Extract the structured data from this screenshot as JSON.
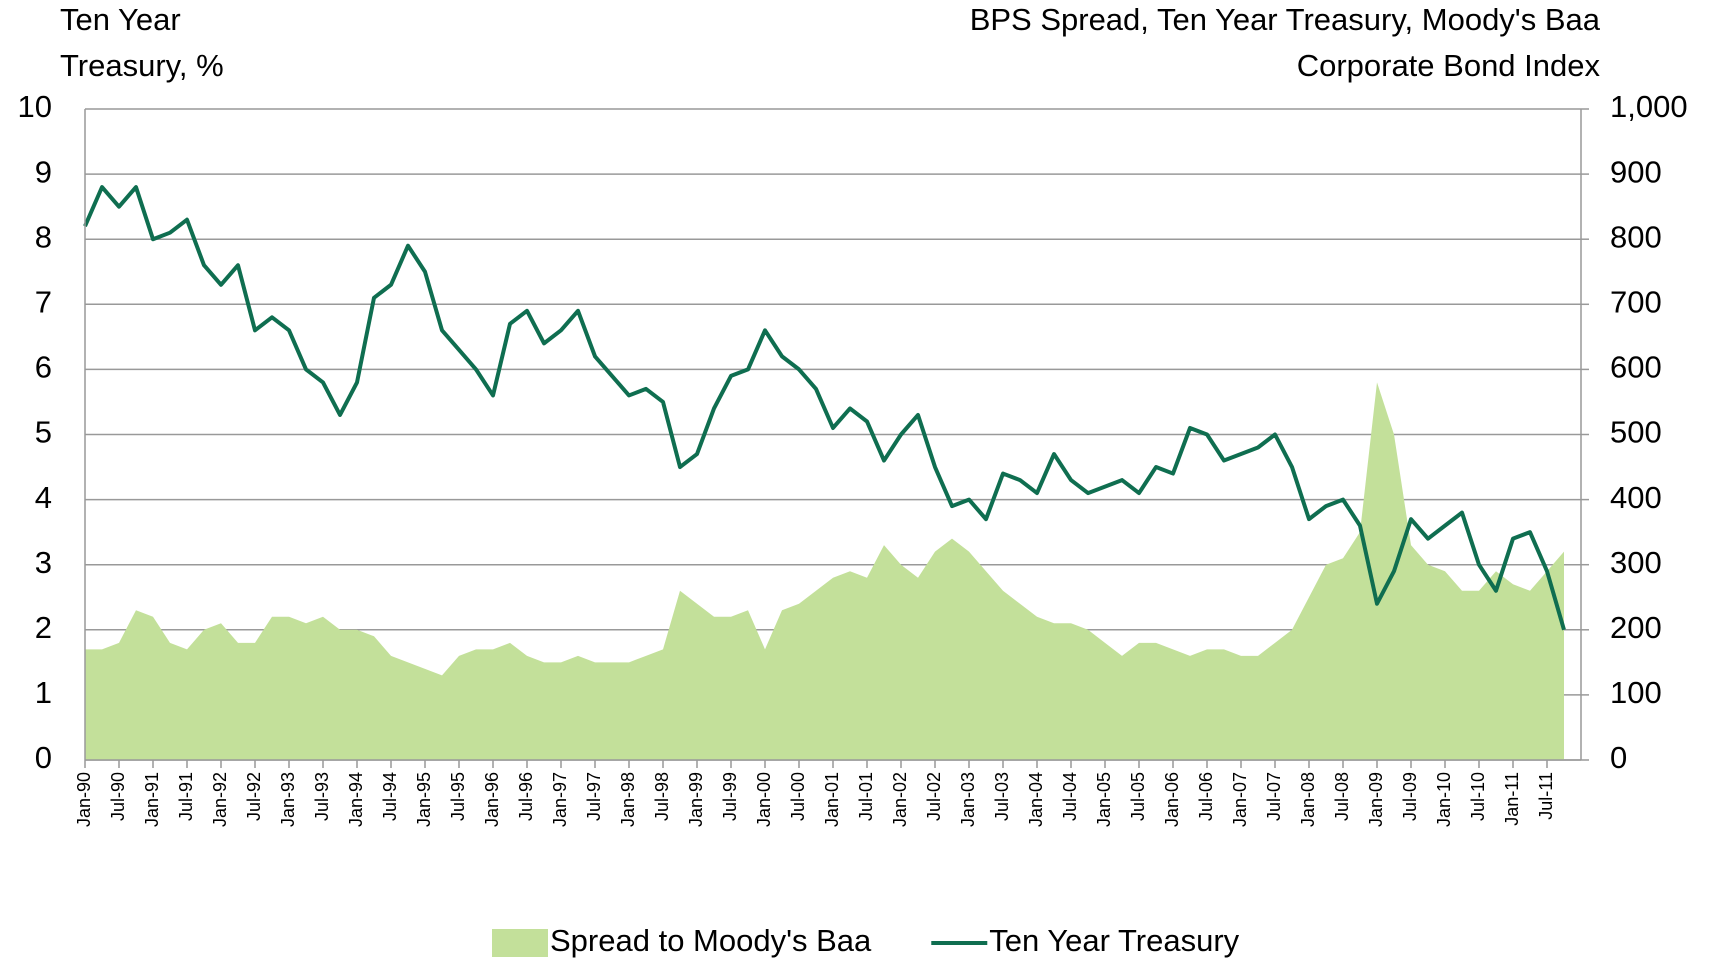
{
  "chart_data": {
    "type": "area-line",
    "y_label": [
      "Ten Year",
      "Treasury, %"
    ],
    "y2_label": [
      "BPS Spread, Ten Year Treasury, Moody's Baa",
      "Corporate Bond Index"
    ],
    "categories": [
      "Jan-90",
      null,
      "Jul-90",
      null,
      "Jan-91",
      null,
      "Jul-91",
      null,
      "Jan-92",
      null,
      "Jul-92",
      null,
      "Jan-93",
      null,
      "Jul-93",
      null,
      "Jan-94",
      null,
      "Jul-94",
      null,
      "Jan-95",
      null,
      "Jul-95",
      null,
      "Jan-96",
      null,
      "Jul-96",
      null,
      "Jan-97",
      null,
      "Jul-97",
      null,
      "Jan-98",
      null,
      "Jul-98",
      null,
      "Jan-99",
      null,
      "Jul-99",
      null,
      "Jan-00",
      null,
      "Jul-00",
      null,
      "Jan-01",
      null,
      "Jul-01",
      null,
      "Jan-02",
      null,
      "Jul-02",
      null,
      "Jan-03",
      null,
      "Jul-03",
      null,
      "Jan-04",
      null,
      "Jul-04",
      null,
      "Jan-05",
      null,
      "Jul-05",
      null,
      "Jan-06",
      null,
      "Jul-06",
      null,
      "Jan-07",
      null,
      "Jul-07",
      null,
      "Jan-08",
      null,
      "Jul-08",
      null,
      "Jan-09",
      null,
      "Jul-09",
      null,
      "Jan-10",
      null,
      "Jul-10",
      null,
      "Jan-11",
      null,
      "Jul-11",
      null
    ],
    "series": [
      {
        "name": "Spread to Moody's Baa",
        "color": "#c3e09a",
        "axis": "y2",
        "kind": "area",
        "values": [
          170,
          170,
          180,
          230,
          220,
          180,
          170,
          200,
          210,
          180,
          180,
          220,
          220,
          210,
          220,
          200,
          200,
          190,
          160,
          150,
          140,
          130,
          160,
          170,
          170,
          180,
          160,
          150,
          150,
          160,
          150,
          150,
          150,
          160,
          170,
          260,
          240,
          220,
          220,
          230,
          170,
          230,
          240,
          260,
          280,
          290,
          280,
          330,
          300,
          280,
          320,
          340,
          320,
          290,
          260,
          240,
          220,
          210,
          210,
          200,
          180,
          160,
          180,
          180,
          170,
          160,
          170,
          170,
          160,
          160,
          180,
          200,
          250,
          300,
          310,
          350,
          580,
          500,
          330,
          300,
          290,
          260,
          260,
          290,
          270,
          260,
          290,
          320
        ]
      },
      {
        "name": "Ten Year Treasury",
        "color": "#0f6e50",
        "axis": "y",
        "kind": "line",
        "values": [
          8.2,
          8.8,
          8.5,
          8.8,
          8.0,
          8.1,
          8.3,
          7.6,
          7.3,
          7.6,
          6.6,
          6.8,
          6.6,
          6.0,
          5.8,
          5.3,
          5.8,
          7.1,
          7.3,
          7.9,
          7.5,
          6.6,
          6.3,
          6.0,
          5.6,
          6.7,
          6.9,
          6.4,
          6.6,
          6.9,
          6.2,
          5.9,
          5.6,
          5.7,
          5.5,
          4.5,
          4.7,
          5.4,
          5.9,
          6.0,
          6.6,
          6.2,
          6.0,
          5.7,
          5.1,
          5.4,
          5.2,
          4.6,
          5.0,
          5.3,
          4.5,
          3.9,
          4.0,
          3.7,
          4.4,
          4.3,
          4.1,
          4.7,
          4.3,
          4.1,
          4.2,
          4.3,
          4.1,
          4.5,
          4.4,
          5.1,
          5.0,
          4.6,
          4.7,
          4.8,
          5.0,
          4.5,
          3.7,
          3.9,
          4.0,
          3.6,
          2.4,
          2.9,
          3.7,
          3.4,
          3.6,
          3.8,
          3.0,
          2.6,
          3.4,
          3.5,
          2.9,
          2.0
        ]
      }
    ],
    "ylim": [
      0,
      10
    ],
    "yticks": [
      0,
      1,
      2,
      3,
      4,
      5,
      6,
      7,
      8,
      9,
      10
    ],
    "y2lim": [
      0,
      1000
    ],
    "y2ticks": [
      0,
      100,
      200,
      300,
      400,
      500,
      600,
      700,
      800,
      900,
      {
        "value": 1000,
        "label": "1,000"
      }
    ],
    "grid": true,
    "legend": "bottom"
  }
}
